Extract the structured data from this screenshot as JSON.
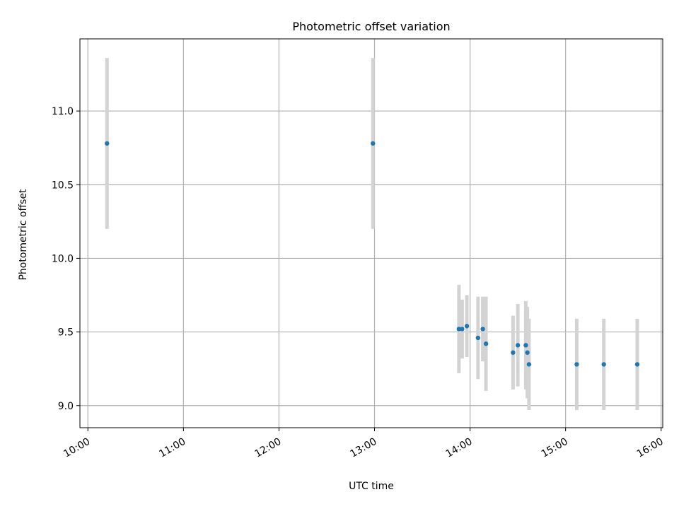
{
  "chart_data": {
    "type": "scatter",
    "title": "Photometric offset variation",
    "xlabel": "UTC time",
    "ylabel": "Photometric offset",
    "x_ticks": [
      "10:00",
      "11:00",
      "12:00",
      "13:00",
      "14:00",
      "15:00",
      "16:00"
    ],
    "y_ticks": [
      "9.0",
      "9.5",
      "10.0",
      "10.5",
      "11.0"
    ],
    "xlim": [
      "09:55",
      "16:01"
    ],
    "ylim": [
      8.85,
      11.49
    ],
    "grid": true,
    "series": [
      {
        "points": [
          {
            "x": "10:12",
            "y": 10.78,
            "err": 0.58
          },
          {
            "x": "12:59",
            "y": 10.78,
            "err": 0.58
          },
          {
            "x": "13:53",
            "y": 9.52,
            "err": 0.3
          },
          {
            "x": "13:55",
            "y": 9.52,
            "err": 0.2
          },
          {
            "x": "13:58",
            "y": 9.54,
            "err": 0.21
          },
          {
            "x": "14:05",
            "y": 9.46,
            "err": 0.28
          },
          {
            "x": "14:08",
            "y": 9.52,
            "err": 0.22
          },
          {
            "x": "14:10",
            "y": 9.42,
            "err": 0.32
          },
          {
            "x": "14:27",
            "y": 9.36,
            "err": 0.25
          },
          {
            "x": "14:30",
            "y": 9.41,
            "err": 0.28
          },
          {
            "x": "14:35",
            "y": 9.41,
            "err": 0.3
          },
          {
            "x": "14:36",
            "y": 9.36,
            "err": 0.31
          },
          {
            "x": "14:37",
            "y": 9.28,
            "err": 0.31
          },
          {
            "x": "15:07",
            "y": 9.28,
            "err": 0.31
          },
          {
            "x": "15:24",
            "y": 9.28,
            "err": 0.31
          },
          {
            "x": "15:45",
            "y": 9.28,
            "err": 0.31
          }
        ]
      }
    ],
    "colors": {
      "point": "#1f77b4",
      "errorbar": "#d3d3d3",
      "grid": "#b0b0b0",
      "axis": "#000000"
    }
  }
}
